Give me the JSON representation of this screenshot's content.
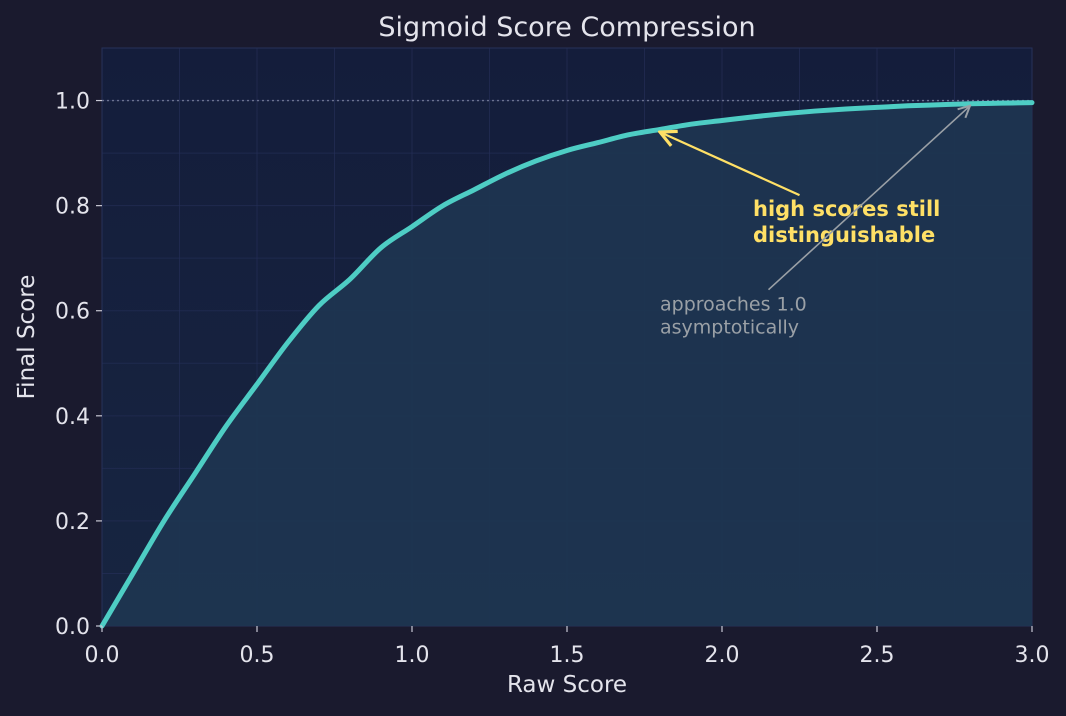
{
  "chart_data": {
    "type": "line",
    "title": "Sigmoid Score Compression",
    "xlabel": "Raw Score",
    "ylabel": "Final Score",
    "xlim": [
      0,
      3
    ],
    "ylim": [
      0,
      1.1
    ],
    "x_ticks": [
      0.0,
      0.5,
      1.0,
      1.5,
      2.0,
      2.5,
      3.0
    ],
    "x_tick_labels": [
      "0.0",
      "0.5",
      "1.0",
      "1.5",
      "2.0",
      "2.5",
      "3.0"
    ],
    "y_ticks": [
      0.0,
      0.2,
      0.4,
      0.6,
      0.8,
      1.0
    ],
    "y_tick_labels": [
      "0.0",
      "0.2",
      "0.4",
      "0.6",
      "0.8",
      "1.0"
    ],
    "grid": true,
    "reference_line": {
      "y": 1.0,
      "style": "dotted"
    },
    "series": [
      {
        "color": "#4ecdc4",
        "fill": true,
        "x": [
          0.0,
          0.1,
          0.2,
          0.3,
          0.4,
          0.5,
          0.6,
          0.7,
          0.8,
          0.9,
          1.0,
          1.1,
          1.2,
          1.3,
          1.4,
          1.5,
          1.6,
          1.7,
          1.8,
          1.9,
          2.0,
          2.1,
          2.2,
          2.3,
          2.4,
          2.5,
          2.6,
          2.7,
          2.8,
          2.9,
          3.0
        ],
        "y": [
          0.0,
          0.1,
          0.2,
          0.29,
          0.38,
          0.46,
          0.54,
          0.61,
          0.66,
          0.72,
          0.76,
          0.8,
          0.83,
          0.86,
          0.885,
          0.905,
          0.92,
          0.935,
          0.945,
          0.955,
          0.962,
          0.969,
          0.975,
          0.98,
          0.984,
          0.987,
          0.99,
          0.992,
          0.994,
          0.995,
          0.996
        ]
      }
    ],
    "annotations": [
      {
        "lines": [
          "high scores still",
          "distinguishable"
        ],
        "text_pos": [
          2.1,
          0.78
        ],
        "arrow_from": [
          2.25,
          0.82
        ],
        "arrow_to": [
          1.8,
          0.94
        ],
        "color": "#ffe066",
        "bold": true
      },
      {
        "lines": [
          "approaches 1.0",
          "asymptotically"
        ],
        "text_pos": [
          1.8,
          0.6
        ],
        "arrow_from": [
          2.15,
          0.64
        ],
        "arrow_to": [
          2.8,
          0.99
        ],
        "color": "#9aa0a6",
        "bold": false
      }
    ]
  }
}
